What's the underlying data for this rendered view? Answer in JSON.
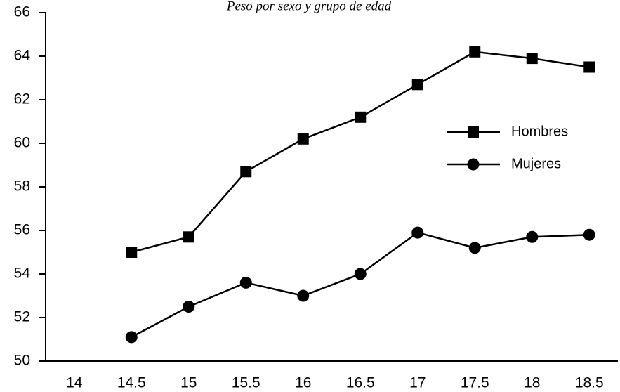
{
  "chart_data": {
    "type": "line",
    "title": "Peso por sexo y grupo de edad",
    "x": [
      14.5,
      15,
      15.5,
      16,
      16.5,
      17,
      17.5,
      18,
      18.5
    ],
    "series": [
      {
        "name": "Hombres",
        "color": "#000000",
        "marker": "square",
        "values": [
          55.0,
          55.7,
          58.7,
          60.2,
          61.2,
          62.7,
          64.2,
          63.9,
          63.5
        ]
      },
      {
        "name": "Mujeres",
        "color": "#000000",
        "marker": "circle",
        "values": [
          51.1,
          52.5,
          53.6,
          53.0,
          54.0,
          55.9,
          55.2,
          55.7,
          55.8
        ]
      }
    ],
    "xlim": [
      13.75,
      18.75
    ],
    "xticks": [
      14,
      14.5,
      15,
      15.5,
      16,
      16.5,
      17,
      17.5,
      18,
      18.5
    ],
    "ylim": [
      50,
      66
    ],
    "yticks": [
      50,
      52,
      54,
      56,
      58,
      60,
      62,
      64,
      66
    ],
    "legend": "right"
  }
}
